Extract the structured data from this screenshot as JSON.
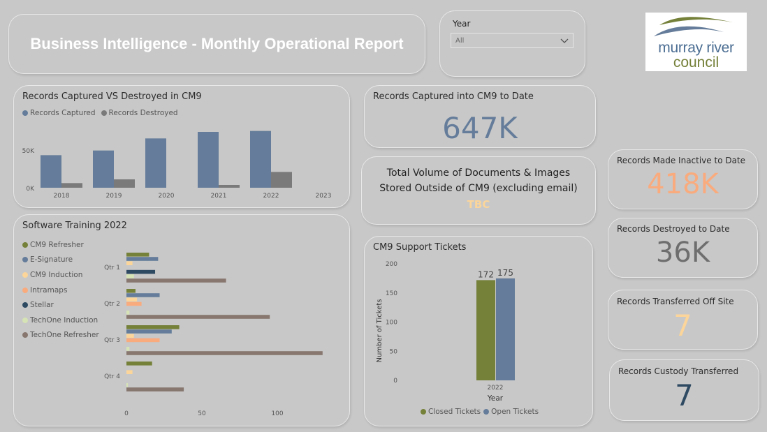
{
  "header": {
    "title": "Business Intelligence - Monthly Operational Report"
  },
  "year_filter": {
    "label": "Year",
    "value": "All"
  },
  "logo": {
    "line1": "murray river",
    "line2": "council"
  },
  "captured_vs_destroyed": {
    "title": "Records Captured VS Destroyed in CM9",
    "legend": [
      "Records Captured",
      "Records Destroyed"
    ],
    "y_ticks": [
      "50K",
      "0K"
    ],
    "chart_data": {
      "type": "bar",
      "categories": [
        "2018",
        "2019",
        "2020",
        "2021",
        "2022",
        "2023"
      ],
      "series": [
        {
          "name": "Records Captured",
          "values": [
            35000,
            40000,
            53000,
            60000,
            61000,
            0
          ]
        },
        {
          "name": "Records Destroyed",
          "values": [
            5000,
            9000,
            0,
            3000,
            17000,
            0
          ]
        }
      ],
      "ylim": [
        0,
        60000
      ],
      "colors": [
        "#657d9a",
        "#7a7a7a"
      ]
    }
  },
  "kpis": {
    "captured": {
      "label": "Records Captured into CM9 to Date",
      "value": "647K",
      "color": "#657d9a"
    },
    "volume": {
      "line1": "Total Volume of Documents & Images",
      "line2": "Stored Outside of CM9 (excluding email)",
      "value": "TBC",
      "color": "#fbd59a"
    },
    "inactive": {
      "label": "Records Made Inactive to Date",
      "value": "418K",
      "color": "#f9ab7e"
    },
    "destroyed": {
      "label": "Records Destroyed to Date",
      "value": "36K",
      "color": "#6e6e6e"
    },
    "offsite": {
      "label": "Records Transferred Off Site",
      "value": "7",
      "color": "#fbd59a"
    },
    "custody": {
      "label": "Records Custody Transferred",
      "value": "7",
      "color": "#2e4a62"
    }
  },
  "training": {
    "title": "Software Training 2022",
    "x_ticks": [
      "0",
      "50",
      "100"
    ],
    "chart_data": {
      "type": "bar",
      "orientation": "horizontal",
      "categories": [
        "Qtr 1",
        "Qtr 2",
        "Qtr 3",
        "Qtr 4"
      ],
      "series": [
        {
          "name": "CM9 Refresher",
          "color": "#758039",
          "values": [
            15,
            6,
            35,
            17
          ]
        },
        {
          "name": "E-Signature",
          "color": "#657d9a",
          "values": [
            21,
            22,
            30,
            0
          ]
        },
        {
          "name": "CM9 Induction",
          "color": "#fbd59a",
          "values": [
            4,
            7,
            5,
            4
          ]
        },
        {
          "name": "Intramaps",
          "color": "#f9ab7e",
          "values": [
            0,
            10,
            22,
            0
          ]
        },
        {
          "name": "Stellar",
          "color": "#2e4a62",
          "values": [
            19,
            0,
            0,
            0
          ]
        },
        {
          "name": "TechOne Induction",
          "color": "#d6e3b5",
          "values": [
            5,
            2,
            2,
            1
          ]
        },
        {
          "name": "TechOne Refresher",
          "color": "#87776e",
          "values": [
            66,
            95,
            130,
            38
          ]
        }
      ],
      "xlim": [
        0,
        130
      ]
    }
  },
  "tickets": {
    "title": "CM9 Support Tickets",
    "ylabel": "Number of Tickets",
    "xlabel": "Year",
    "y_ticks": [
      "200",
      "150",
      "100",
      "50",
      "0"
    ],
    "legend": [
      "Closed Tickets",
      "Open Tickets"
    ],
    "chart_data": {
      "type": "bar",
      "categories": [
        "2022"
      ],
      "series": [
        {
          "name": "Closed Tickets",
          "values": [
            172
          ],
          "color": "#758039"
        },
        {
          "name": "Open Tickets",
          "values": [
            175
          ],
          "color": "#657d9a"
        }
      ],
      "ylim": [
        0,
        200
      ]
    }
  }
}
